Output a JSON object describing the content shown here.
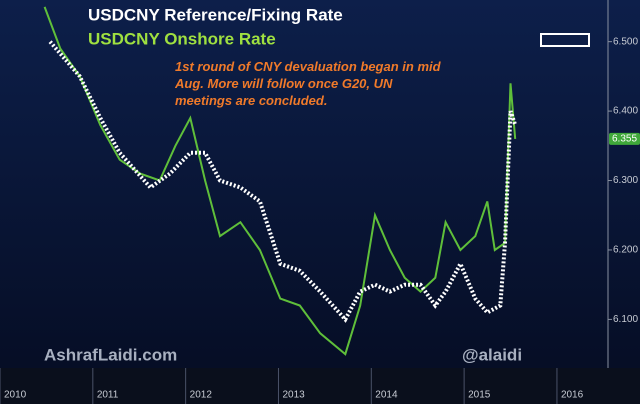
{
  "chart_data": {
    "type": "line",
    "title": "USDCNY Reference/Fixing Rate",
    "subtitle": "USDCNY Onshore Rate",
    "annotation": "1st round of CNY devaluation began in mid Aug.  More will follow once G20, UN meetings are concluded.",
    "watermark_left": "AshrafLaidi.com",
    "watermark_right": "@alaidi",
    "last_price_label": "6.355",
    "series": [
      {
        "name": "USDCNY Onshore Rate",
        "color": "#5fbf3a",
        "line_style": "solid",
        "x": [
          2010.48,
          2010.65,
          2010.86,
          2011.08,
          2011.29,
          2011.51,
          2011.72,
          2011.89,
          2012.05,
          2012.21,
          2012.37,
          2012.59,
          2012.8,
          2013.02,
          2013.23,
          2013.45,
          2013.72,
          2013.88,
          2014.04,
          2014.2,
          2014.36,
          2014.53,
          2014.69,
          2014.8,
          2014.96,
          2015.12,
          2015.25,
          2015.33,
          2015.44,
          2015.5,
          2015.55
        ],
        "values": [
          6.55,
          6.49,
          6.45,
          6.38,
          6.33,
          6.31,
          6.3,
          6.35,
          6.39,
          6.3,
          6.22,
          6.24,
          6.2,
          6.13,
          6.12,
          6.08,
          6.05,
          6.12,
          6.25,
          6.2,
          6.16,
          6.14,
          6.16,
          6.24,
          6.2,
          6.22,
          6.27,
          6.2,
          6.21,
          6.44,
          6.36
        ]
      },
      {
        "name": "USDCNY Reference/Fixing Rate",
        "color": "#ffffff",
        "line_style": "dotted",
        "x": [
          2010.54,
          2010.86,
          2011.08,
          2011.29,
          2011.62,
          2011.83,
          2012.05,
          2012.21,
          2012.37,
          2012.59,
          2012.8,
          2013.02,
          2013.23,
          2013.45,
          2013.72,
          2013.88,
          2014.04,
          2014.2,
          2014.36,
          2014.53,
          2014.69,
          2014.8,
          2014.96,
          2015.12,
          2015.25,
          2015.39,
          2015.44,
          2015.5,
          2015.55
        ],
        "values": [
          6.5,
          6.45,
          6.39,
          6.34,
          6.29,
          6.31,
          6.34,
          6.34,
          6.3,
          6.29,
          6.27,
          6.18,
          6.17,
          6.14,
          6.1,
          6.14,
          6.15,
          6.14,
          6.15,
          6.15,
          6.12,
          6.14,
          6.18,
          6.13,
          6.11,
          6.12,
          6.21,
          6.4,
          6.38
        ]
      }
    ],
    "xlim": [
      2010,
      2016.55
    ],
    "xticks": [
      2010,
      2011,
      2012,
      2013,
      2014,
      2015,
      2016
    ],
    "ylim": [
      6.03,
      6.56
    ],
    "yticks": [
      {
        "value": 6.1,
        "label": "6.100"
      },
      {
        "value": 6.2,
        "label": "6.200"
      },
      {
        "value": 6.3,
        "label": "6.300"
      },
      {
        "value": 6.4,
        "label": "6.400"
      },
      {
        "value": 6.5,
        "label": "6.500"
      }
    ]
  }
}
